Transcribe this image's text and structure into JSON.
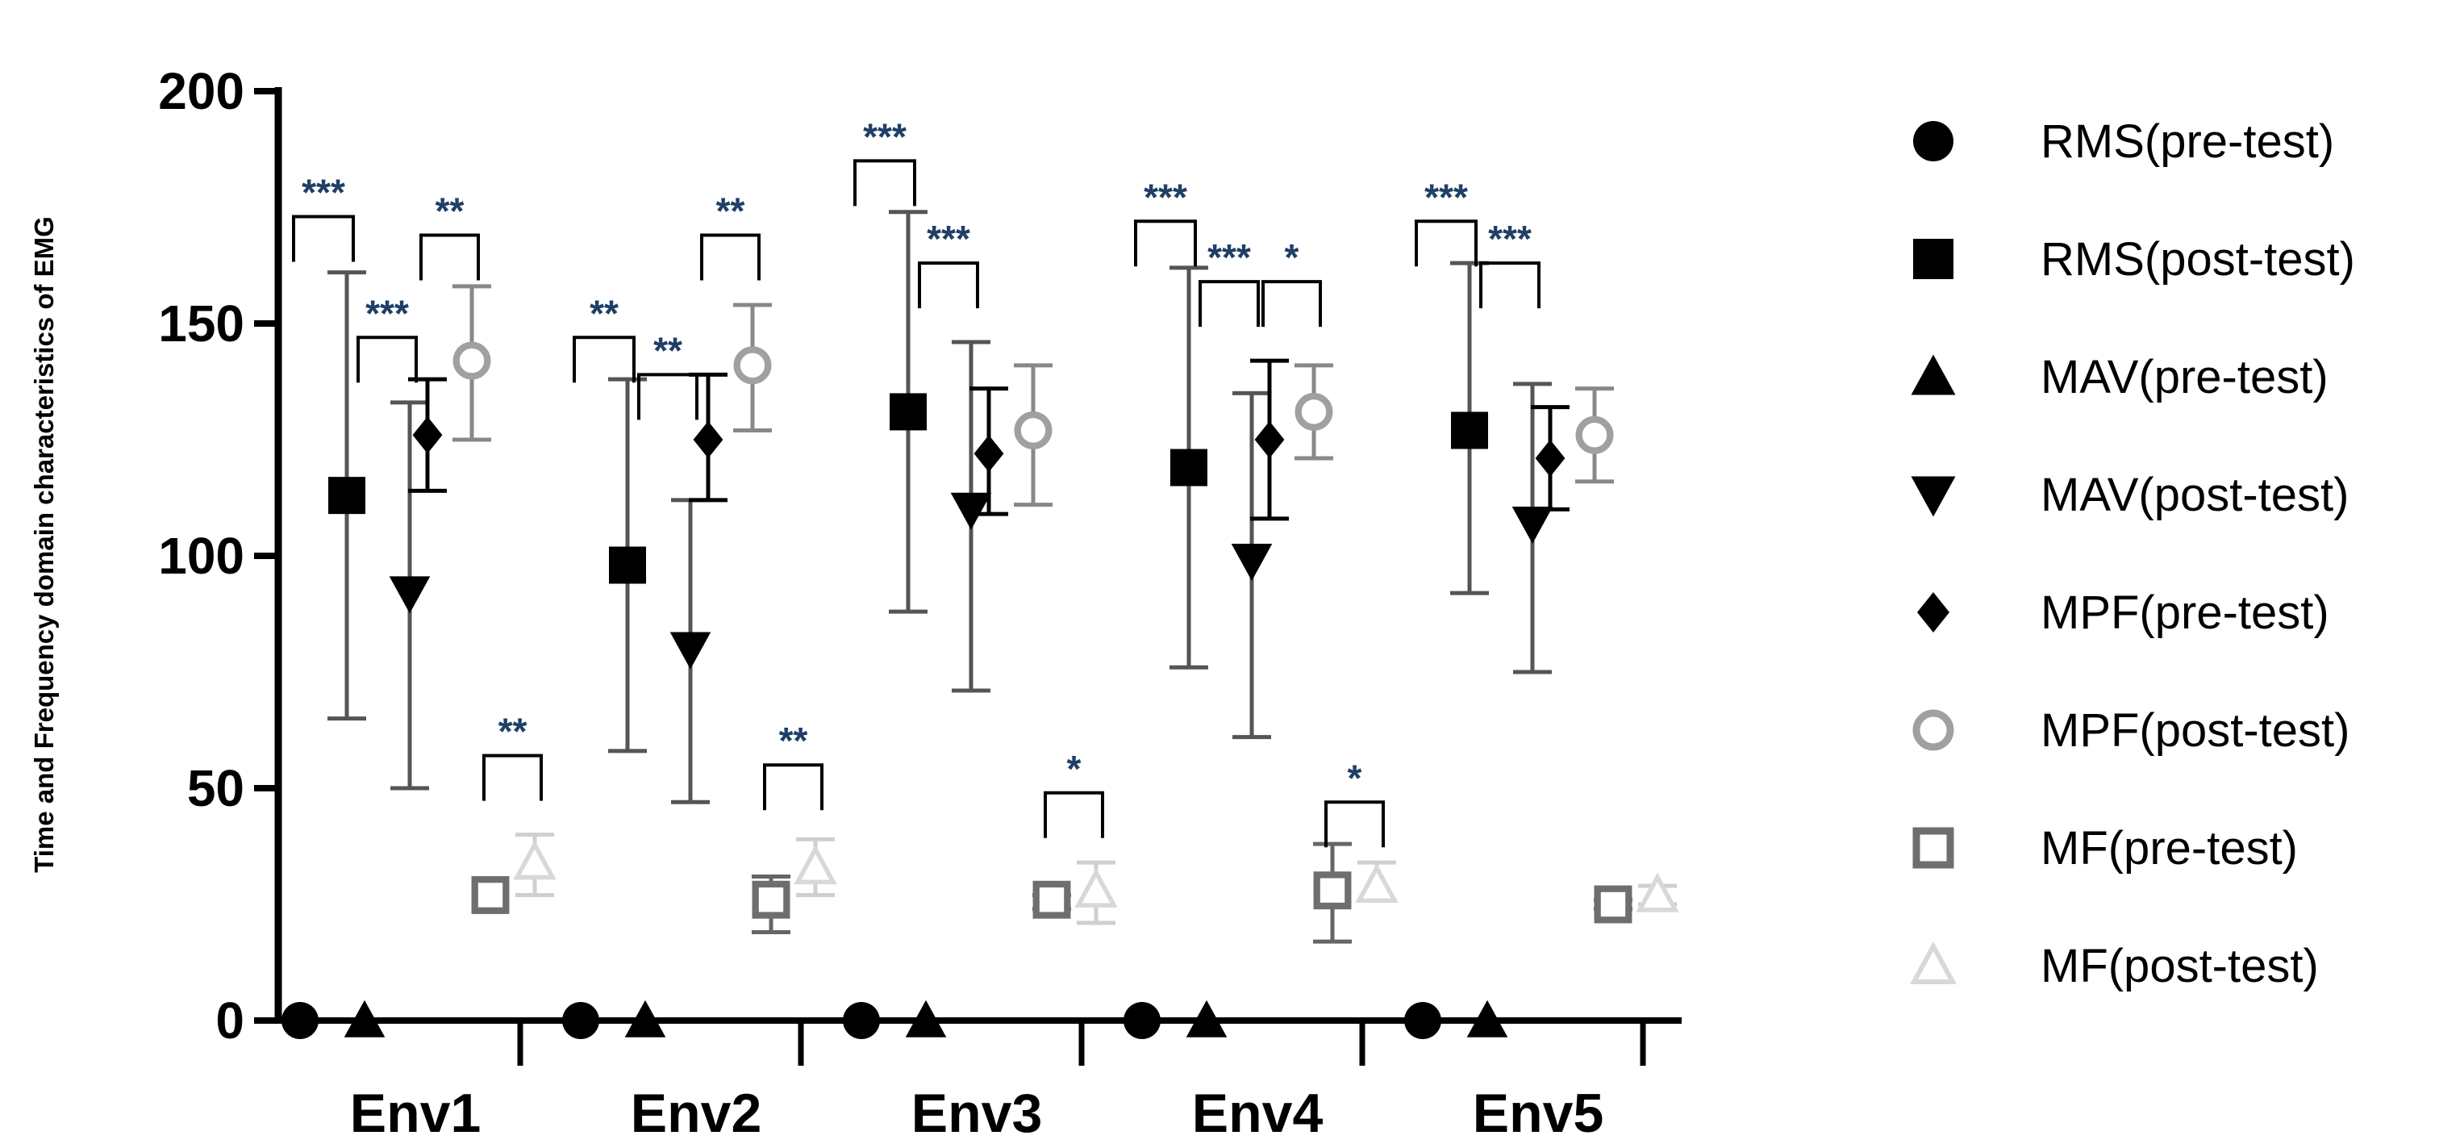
{
  "chart_data": {
    "type": "scatter",
    "title": "",
    "xlabel": "",
    "ylabel": "Time and Frequency domain characteristics of EMG",
    "ylim": [
      0,
      200
    ],
    "yticks": [
      "0",
      "50",
      "100",
      "150",
      "200"
    ],
    "categories": [
      "Env1",
      "Env2",
      "Env3",
      "Env4",
      "Env5"
    ],
    "legend_position": "right",
    "series": [
      {
        "name": "RMS(pre-test)",
        "marker": "circle",
        "color": "#000000",
        "values": [
          0,
          0,
          0,
          0,
          0
        ],
        "err_low": [
          0,
          0,
          0,
          0,
          0
        ],
        "err_high": [
          0,
          0,
          0,
          0,
          0
        ]
      },
      {
        "name": "RMS(post-test)",
        "marker": "square",
        "color": "#000000",
        "values": [
          113,
          98,
          131,
          119,
          127
        ],
        "err_low": [
          65,
          58,
          88,
          76,
          92
        ],
        "err_high": [
          161,
          138,
          174,
          162,
          163
        ]
      },
      {
        "name": "MAV(pre-test)",
        "marker": "triangle-up",
        "color": "#000000",
        "values": [
          0,
          0,
          0,
          0,
          0
        ],
        "err_low": [
          0,
          0,
          0,
          0,
          0
        ],
        "err_high": [
          0,
          0,
          0,
          0,
          0
        ]
      },
      {
        "name": "MAV(post-test)",
        "marker": "triangle-down",
        "color": "#000000",
        "values": [
          92,
          80,
          110,
          99,
          107
        ],
        "err_low": [
          50,
          47,
          71,
          61,
          75
        ],
        "err_high": [
          133,
          112,
          146,
          135,
          137
        ]
      },
      {
        "name": "MPF(pre-test)",
        "marker": "diamond",
        "color": "#000000",
        "values": [
          126,
          125,
          122,
          125,
          121
        ],
        "err_low": [
          114,
          112,
          109,
          108,
          110
        ],
        "err_high": [
          138,
          139,
          136,
          142,
          132
        ]
      },
      {
        "name": "MPF(post-test)",
        "marker": "circle-open",
        "color": "#a0a0a0",
        "values": [
          142,
          141,
          127,
          131,
          126
        ],
        "err_low": [
          125,
          127,
          111,
          121,
          116
        ],
        "err_high": [
          158,
          154,
          141,
          141,
          136
        ]
      },
      {
        "name": "MF(pre-test)",
        "marker": "square-open",
        "color": "#6e6e6e",
        "values": [
          27,
          26,
          26,
          28,
          25
        ],
        "err_low": [
          27,
          19,
          24,
          17,
          24
        ],
        "err_high": [
          27,
          31,
          27,
          38,
          26
        ]
      },
      {
        "name": "MF(post-test)",
        "marker": "triangle-open",
        "color": "#d8d8d8",
        "values": [
          34,
          33,
          28,
          29,
          27
        ],
        "err_low": [
          27,
          27,
          21,
          26,
          25
        ],
        "err_high": [
          40,
          39,
          34,
          34,
          29
        ]
      }
    ],
    "significance": [
      {
        "env": 0,
        "from": 0,
        "to": 1,
        "label": "***",
        "y": 173
      },
      {
        "env": 0,
        "from": 2,
        "to": 3,
        "label": "***",
        "y": 147
      },
      {
        "env": 0,
        "from": 4,
        "to": 5,
        "label": "**",
        "y": 169
      },
      {
        "env": 0,
        "from": 6,
        "to": 7,
        "label": "**",
        "y": 57
      },
      {
        "env": 1,
        "from": 0,
        "to": 1,
        "label": "**",
        "y": 147
      },
      {
        "env": 1,
        "from": 2,
        "to": 3,
        "label": "**",
        "y": 139
      },
      {
        "env": 1,
        "from": 4,
        "to": 5,
        "label": "**",
        "y": 169
      },
      {
        "env": 1,
        "from": 6,
        "to": 7,
        "label": "**",
        "y": 55
      },
      {
        "env": 2,
        "from": 0,
        "to": 1,
        "label": "***",
        "y": 185
      },
      {
        "env": 2,
        "from": 2,
        "to": 3,
        "label": "***",
        "y": 163
      },
      {
        "env": 2,
        "from": 6,
        "to": 7,
        "label": "*",
        "y": 49
      },
      {
        "env": 3,
        "from": 0,
        "to": 1,
        "label": "***",
        "y": 172
      },
      {
        "env": 3,
        "from": 2,
        "to": 3,
        "label": "***",
        "y": 159
      },
      {
        "env": 3,
        "from": 4,
        "to": 5,
        "label": "*",
        "y": 159
      },
      {
        "env": 3,
        "from": 6,
        "to": 7,
        "label": "*",
        "y": 47
      },
      {
        "env": 4,
        "from": 0,
        "to": 1,
        "label": "***",
        "y": 172
      },
      {
        "env": 4,
        "from": 2,
        "to": 3,
        "label": "***",
        "y": 163
      }
    ]
  }
}
